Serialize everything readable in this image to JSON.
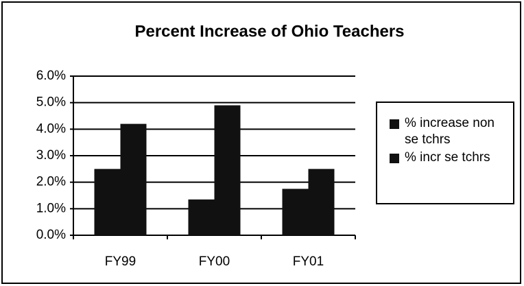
{
  "chart_data": {
    "type": "bar",
    "title": "Percent Increase of Ohio Teachers",
    "categories": [
      "FY99",
      "FY00",
      "FY01"
    ],
    "series": [
      {
        "name": "% increase non se tchrs",
        "color": "#111111",
        "values": [
          2.5,
          1.35,
          1.75
        ]
      },
      {
        "name": "% incr se tchrs",
        "color": "#111111",
        "values": [
          4.2,
          4.9,
          2.5
        ]
      }
    ],
    "ylim": [
      0,
      6
    ],
    "yticks": [
      {
        "value": 0,
        "label": "0.0%"
      },
      {
        "value": 1,
        "label": "1.0%"
      },
      {
        "value": 2,
        "label": "2.0%"
      },
      {
        "value": 3,
        "label": "3.0%"
      },
      {
        "value": 4,
        "label": "4.0%"
      },
      {
        "value": 5,
        "label": "5.0%"
      },
      {
        "value": 6,
        "label": "6.0%"
      }
    ],
    "grid": true
  }
}
